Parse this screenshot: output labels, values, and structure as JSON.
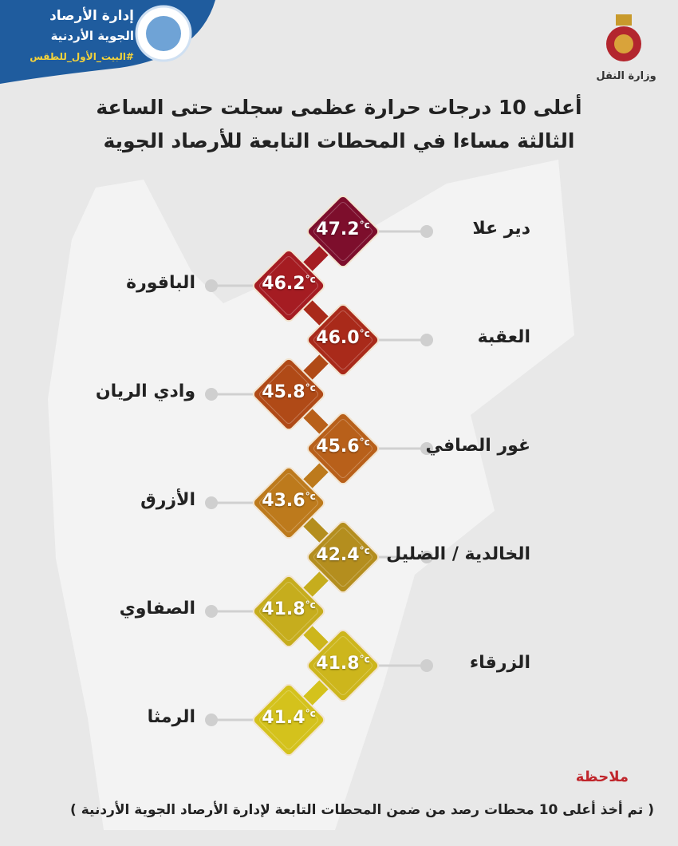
{
  "header": {
    "org_line1": "إدارة الأرصاد",
    "org_line2": "الجوية الأردنية",
    "hashtag": "#البيت_الأول_للطقس",
    "ministry": "وزارة النقل"
  },
  "title": {
    "line1": "أعلى 10 درجات حرارة عظمى سجلت حتى الساعة",
    "line2": "الثالثة مساءا في المحطات التابعة للأرصاد الجوية"
  },
  "unit": "°c",
  "stations": [
    {
      "name": "دير علا",
      "value": "47.2",
      "color": "#7d0e2c"
    },
    {
      "name": "الباقورة",
      "value": "46.2",
      "color": "#a51c22"
    },
    {
      "name": "العقبة",
      "value": "46.0",
      "color": "#a92a1a"
    },
    {
      "name": "وادي الريان",
      "value": "45.8",
      "color": "#b04a17"
    },
    {
      "name": "غور الصافي",
      "value": "45.6",
      "color": "#b8601a"
    },
    {
      "name": "الأزرق",
      "value": "43.6",
      "color": "#bd7a1c"
    },
    {
      "name": "الخالدية / الضليل",
      "value": "42.4",
      "color": "#b48e1e"
    },
    {
      "name": "الصفاوي",
      "value": "41.8",
      "color": "#c6ad1d"
    },
    {
      "name": "الزرقاء",
      "value": "41.8",
      "color": "#cdb61c"
    },
    {
      "name": "الرمثا",
      "value": "41.4",
      "color": "#d4c21c"
    }
  ],
  "note": {
    "heading": "ملاحظة",
    "text": "( تم أخذ أعلى 10 محطات رصد من ضمن المحطات التابعة لإدارة الأرصاد الجوية الأردنية )"
  }
}
